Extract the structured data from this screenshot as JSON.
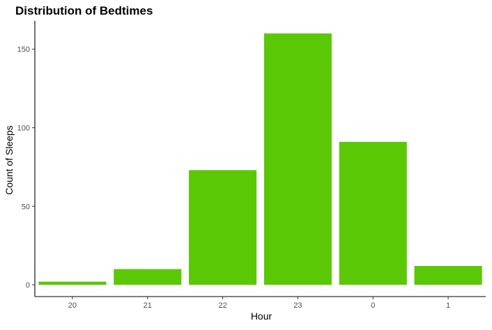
{
  "chart_data": {
    "type": "bar",
    "title": "Distribution of Bedtimes",
    "xlabel": "Hour",
    "ylabel": "Count of Sleeps",
    "categories": [
      "20",
      "21",
      "22",
      "23",
      "0",
      "1"
    ],
    "values": [
      2,
      10,
      73,
      160,
      91,
      12
    ],
    "ylim": [
      -7.5,
      168
    ],
    "yticks": [
      0,
      50,
      100,
      150
    ],
    "bar_color": "#5AC805",
    "grid": false,
    "legend": "none"
  }
}
